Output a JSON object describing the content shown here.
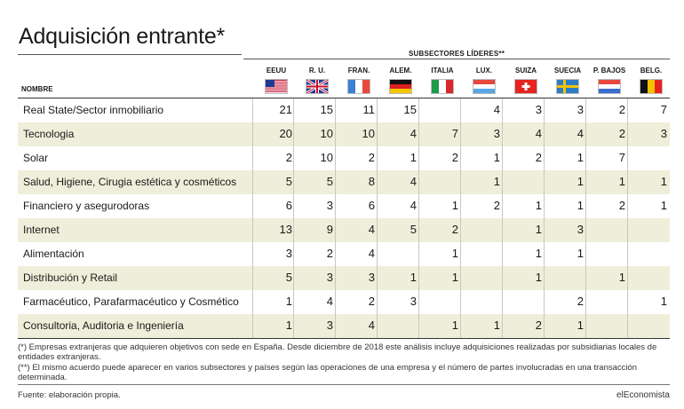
{
  "title": "Adquisición entrante*",
  "subsectors_label": "SUBSECTORES LÍDERES**",
  "name_header": "NOMBRE",
  "countries": [
    {
      "label": "EEUU",
      "flag": "us-flag-icon"
    },
    {
      "label": "R. U.",
      "flag": "uk-flag-icon"
    },
    {
      "label": "FRAN.",
      "flag": "france-flag-icon"
    },
    {
      "label": "ALEM.",
      "flag": "germany-flag-icon"
    },
    {
      "label": "ITALIA",
      "flag": "italy-flag-icon"
    },
    {
      "label": "LUX.",
      "flag": "luxembourg-flag-icon"
    },
    {
      "label": "SUIZA",
      "flag": "switzerland-flag-icon"
    },
    {
      "label": "SUECIA",
      "flag": "sweden-flag-icon"
    },
    {
      "label": "P. BAJOS",
      "flag": "netherlands-flag-icon"
    },
    {
      "label": "BELG.",
      "flag": "belgium-flag-icon"
    }
  ],
  "chart_data": {
    "type": "table",
    "columns": [
      "EEUU",
      "R. U.",
      "FRAN.",
      "ALEM.",
      "ITALIA",
      "LUX.",
      "SUIZA",
      "SUECIA",
      "P. BAJOS",
      "BELG."
    ],
    "rows": [
      {
        "name": "Real State/Sector inmobiliario",
        "values": [
          "21",
          "15",
          "11",
          "15",
          "",
          "4",
          "3",
          "3",
          "2",
          "7"
        ]
      },
      {
        "name": "Tecnologia",
        "values": [
          "20",
          "10",
          "10",
          "4",
          "7",
          "3",
          "4",
          "4",
          "2",
          "3"
        ]
      },
      {
        "name": "Solar",
        "values": [
          "2",
          "10",
          "2",
          "1",
          "2",
          "1",
          "2",
          "1",
          "7",
          ""
        ]
      },
      {
        "name": "Salud, Higiene, Cirugia estética y cosméticos",
        "values": [
          "5",
          "5",
          "8",
          "4",
          "",
          "1",
          "",
          "1",
          "1",
          "1"
        ]
      },
      {
        "name": "Financiero y asegurodoras",
        "values": [
          "6",
          "3",
          "6",
          "4",
          "1",
          "2",
          "1",
          "1",
          "2",
          "1"
        ]
      },
      {
        "name": "Internet",
        "values": [
          "13",
          "9",
          "4",
          "5",
          "2",
          "",
          "1",
          "3",
          "",
          ""
        ]
      },
      {
        "name": "Alimentación",
        "values": [
          "3",
          "2",
          "4",
          "",
          "1",
          "",
          "1",
          "1",
          "",
          ""
        ]
      },
      {
        "name": "Distribución y Retail",
        "values": [
          "5",
          "3",
          "3",
          "1",
          "1",
          "",
          "1",
          "",
          "1",
          ""
        ]
      },
      {
        "name": "Farmacéutico, Parafarmacéutico y Cosmético",
        "values": [
          "1",
          "4",
          "2",
          "3",
          "",
          "",
          "",
          "2",
          "",
          "1"
        ]
      },
      {
        "name": "Consultoria, Auditoria e Ingeniería",
        "values": [
          "1",
          "3",
          "4",
          "",
          "1",
          "1",
          "2",
          "1",
          "",
          ""
        ]
      }
    ]
  },
  "notes": [
    "(*) Empresas extranjeras que adquieren objetivos con sede en España. Desde diciembre de 2018 este análisis incluye adquisiciones realizadas por subsidiarias locales de entidades extranjeras.",
    "(**) El mismo acuerdo puede aparecer en varios subsectores y países según las operaciones de una empresa y el número de partes involucradas en una transacción determinada."
  ],
  "source": "Fuente: elaboración propia.",
  "brand": "elEconomista",
  "colors": {
    "shade": "#eeeeda",
    "text": "#1a1a1a",
    "rule": "#333333"
  }
}
